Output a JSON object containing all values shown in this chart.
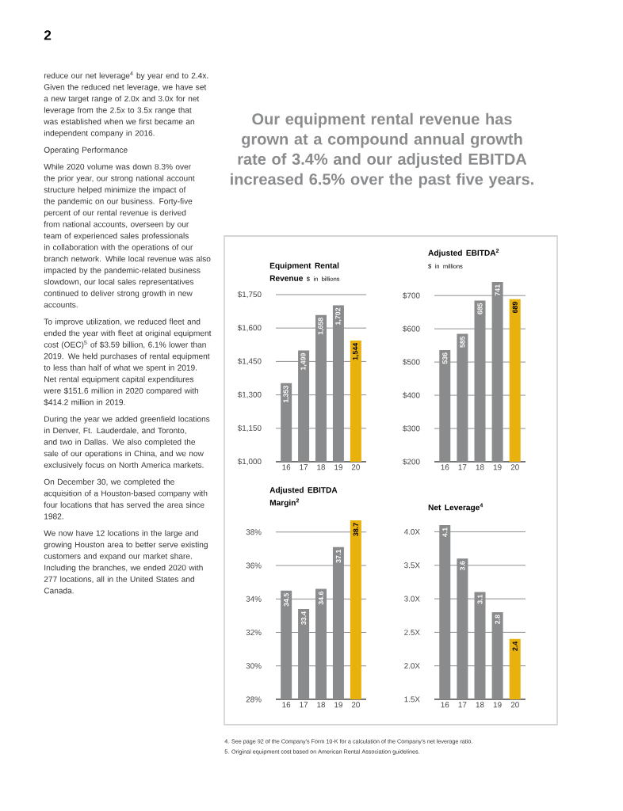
{
  "chart_data": [
    {
      "type": "other",
      "title": "Our equipment rental revenue has grown at a compound annual growth rate of 3.4% and our adjusted EBITDA increased 6.5% over the past five years.",
      "annotations": [
        "2",
        "reduce our net leverage$^{4}$ by year end to 2.4x. Given the reduced net leverage, we have set a new target range of 2.0x and 3.0x for net leverage from the 2.5x to 3.5x range that was established when we first became an independent company in 2016.",
        "Operating Performance",
        "While 2020 volume was down 8.3% over the prior year, our strong national account structure helped minimize the impact of the pandemic on our business. Forty-five percent of our rental revenue is derived from national accounts, overseen by our team of experienced sales professionals in collaboration with the operations of our branch network. While local revenue was also impacted by the pandemic-related business slowdown, our local sales representatives continued to deliver strong growth in new accounts.",
        "To improve utilization, we reduced fleet and ended the year with fleet at original equipment cost (OEC)$^{5}$ of $3.59 billion, 6.1% lower than 2019. We held purchases of rental equipment to less than half of what we spent in 2019. Net rental equipment capital expenditures were $151.6 million in 2020 compared with $414.2 million in 2019.",
        "During the year we added greenfield locations in Denver, Ft. Lauderdale, and Toronto, and two in Dallas. We also completed the sale of our operations in China, and we now exclusively focus on North America markets.",
        "On December 30, we completed the acquisition of a Houston-based company with four locations that has served the area since 1982.",
        "We now have 12 locations in the large and growing Houston area to better serve existing customers and expand our market share. Including the branches, we ended 2020 with 277 locations, all in the United States and Canada.",
        "4. See page 92 of the Company's Form 10-K for a calculation of the Company's net leverage ratio.",
        "5. Original equipment cost based on American Rental Association guidelines."
      ]
    },
    {
      "type": "bar",
      "title": "Equipment Rental Revenue",
      "subtitle": "$ in billions",
      "categories": [
        "16",
        "17",
        "18",
        "19",
        "20"
      ],
      "values": [
        1353,
        1499,
        1658,
        1702,
        1544
      ],
      "value_labels": [
        "1,353",
        "1,499",
        "1,658",
        "1,702",
        "1,544"
      ],
      "colors": [
        "#8a8b8d",
        "#8a8b8d",
        "#8a8b8d",
        "#8a8b8d",
        "#e8b10e"
      ],
      "ylim": [
        1000,
        1750
      ],
      "yticks": [
        {
          "value": 1000,
          "label": "$1,000"
        },
        {
          "value": 1150,
          "label": "$1,150"
        },
        {
          "value": 1300,
          "label": "$1,300"
        },
        {
          "value": 1450,
          "label": "$1,450"
        },
        {
          "value": 1600,
          "label": "$1,600"
        },
        {
          "value": 1750,
          "label": "$1,750"
        }
      ],
      "grid": "y"
    },
    {
      "type": "bar",
      "title": "Adjusted EBITDA$^{2}$",
      "subtitle": "$ in millions",
      "categories": [
        "16",
        "17",
        "18",
        "19",
        "20"
      ],
      "values": [
        536,
        585,
        685,
        741,
        689
      ],
      "data_labels": true,
      "colors": [
        "#8a8b8d",
        "#8a8b8d",
        "#8a8b8d",
        "#8a8b8d",
        "#e8b10e"
      ],
      "ylim": [
        200,
        741
      ],
      "yticks": [
        {
          "value": 200,
          "label": "$200"
        },
        {
          "value": 300,
          "label": "$300"
        },
        {
          "value": 400,
          "label": "$400"
        },
        {
          "value": 500,
          "label": "$500"
        },
        {
          "value": 600,
          "label": "$600"
        },
        {
          "value": 700,
          "label": "$700"
        }
      ],
      "grid": "y"
    },
    {
      "type": "bar",
      "title": "Adjusted EBITDA Margin$^{2}$",
      "categories": [
        "16",
        "17",
        "18",
        "19",
        "20"
      ],
      "values": [
        34.5,
        33.4,
        34.6,
        37.1,
        38.7
      ],
      "data_labels": true,
      "colors": [
        "#8a8b8d",
        "#8a8b8d",
        "#8a8b8d",
        "#8a8b8d",
        "#e8b10e"
      ],
      "ylim": [
        28,
        38.7
      ],
      "yticks": [
        {
          "value": 28,
          "label": "28%"
        },
        {
          "value": 30,
          "label": "30%"
        },
        {
          "value": 32,
          "label": "32%"
        },
        {
          "value": 34,
          "label": "34%"
        },
        {
          "value": 36,
          "label": "36%"
        },
        {
          "value": 38,
          "label": "38%"
        }
      ],
      "grid": "y"
    },
    {
      "type": "bar",
      "title": "Net Leverage$^{4}$",
      "categories": [
        "16",
        "17",
        "18",
        "19",
        "20"
      ],
      "values": [
        4.1,
        3.6,
        3.1,
        2.8,
        2.4
      ],
      "data_labels": true,
      "colors": [
        "#8a8b8d",
        "#8a8b8d",
        "#8a8b8d",
        "#8a8b8d",
        "#e8b10e"
      ],
      "ylim": [
        1.5,
        4.1
      ],
      "yticks": [
        {
          "value": 1.5,
          "label": "1.5X"
        },
        {
          "value": 2.0,
          "label": "2.0X"
        },
        {
          "value": 2.5,
          "label": "2.5X"
        },
        {
          "value": 3.0,
          "label": "3.0X"
        },
        {
          "value": 3.5,
          "label": "3.5X"
        },
        {
          "value": 4.0,
          "label": "4.0X"
        }
      ],
      "grid": "y"
    }
  ]
}
